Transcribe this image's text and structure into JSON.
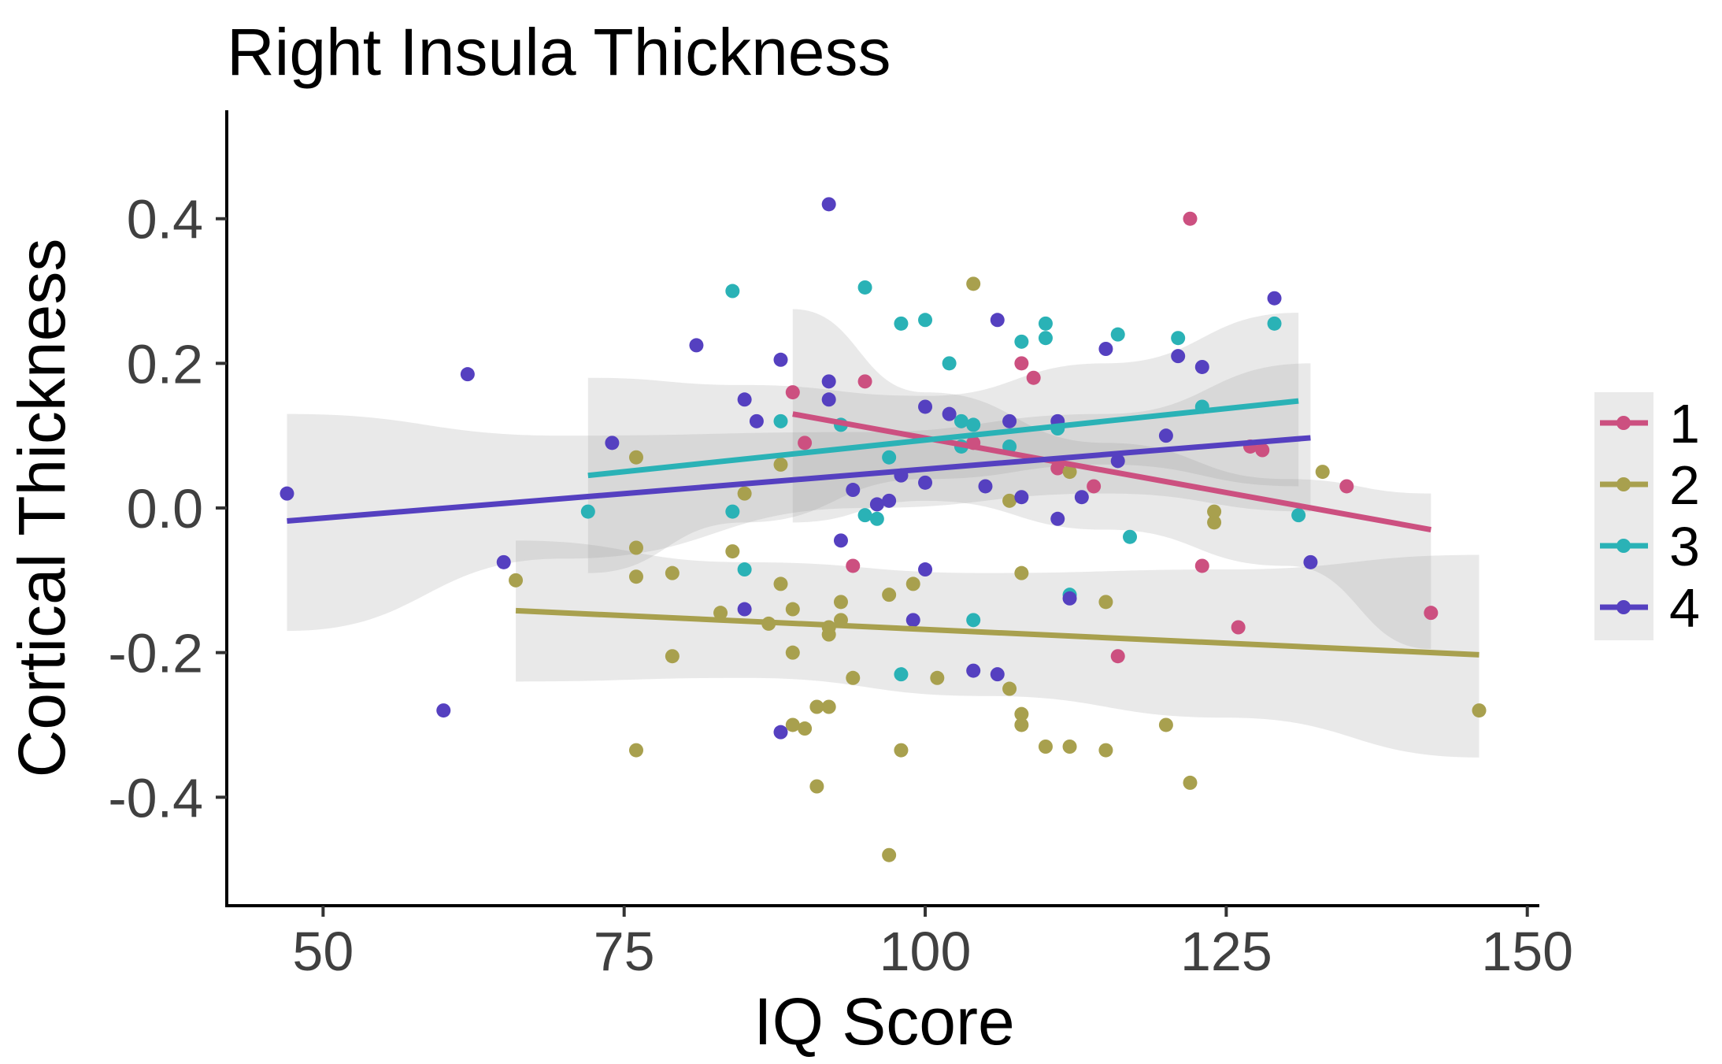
{
  "chart_data": {
    "type": "scatter",
    "title": "Right Insula Thickness",
    "xlabel": "IQ Score",
    "ylabel": "Cortical Thickness",
    "xlim": [
      42,
      151
    ],
    "ylim": [
      -0.55,
      0.55
    ],
    "x_ticks": [
      50,
      75,
      100,
      125,
      150
    ],
    "x_tick_labels": [
      "50",
      "75",
      "100",
      "125",
      "150"
    ],
    "y_ticks": [
      -0.4,
      -0.2,
      0.0,
      0.2,
      0.4
    ],
    "y_tick_labels": [
      "-0.4",
      "-0.2",
      "0.0",
      "0.2",
      "0.4"
    ],
    "grid": false,
    "legend_position": "right",
    "series": [
      {
        "name": "1",
        "color": "#CC5080",
        "points": [
          [
            89,
            0.16
          ],
          [
            90,
            0.09
          ],
          [
            94,
            -0.08
          ],
          [
            95,
            0.175
          ],
          [
            104,
            0.09
          ],
          [
            108,
            0.2
          ],
          [
            109,
            0.18
          ],
          [
            111,
            0.055
          ],
          [
            114,
            0.03
          ],
          [
            116,
            -0.205
          ],
          [
            122,
            0.4
          ],
          [
            123,
            -0.08
          ],
          [
            126,
            -0.165
          ],
          [
            127,
            0.085
          ],
          [
            128,
            0.08
          ],
          [
            135,
            0.03
          ],
          [
            142,
            -0.145
          ]
        ],
        "trend": {
          "x": [
            89,
            142
          ],
          "y": [
            0.13,
            -0.03
          ]
        },
        "band": {
          "x": [
            89,
            100,
            115,
            130,
            142
          ],
          "upper": [
            0.275,
            0.16,
            0.09,
            0.04,
            0.02
          ],
          "lower": [
            -0.02,
            0.01,
            -0.03,
            -0.08,
            -0.195
          ]
        }
      },
      {
        "name": "2",
        "color": "#A8A04E",
        "points": [
          [
            66,
            -0.1
          ],
          [
            76,
            0.07
          ],
          [
            76,
            -0.055
          ],
          [
            76,
            -0.095
          ],
          [
            76,
            -0.335
          ],
          [
            79,
            -0.09
          ],
          [
            79,
            -0.205
          ],
          [
            83,
            -0.145
          ],
          [
            84,
            -0.06
          ],
          [
            85,
            0.02
          ],
          [
            87,
            -0.16
          ],
          [
            88,
            0.06
          ],
          [
            88,
            -0.105
          ],
          [
            89,
            -0.14
          ],
          [
            89,
            -0.2
          ],
          [
            89,
            -0.3
          ],
          [
            90,
            -0.305
          ],
          [
            91,
            -0.275
          ],
          [
            91,
            -0.385
          ],
          [
            92,
            -0.165
          ],
          [
            92,
            -0.175
          ],
          [
            92,
            -0.275
          ],
          [
            93,
            -0.13
          ],
          [
            93,
            -0.155
          ],
          [
            94,
            -0.235
          ],
          [
            97,
            -0.12
          ],
          [
            97,
            -0.48
          ],
          [
            98,
            -0.335
          ],
          [
            99,
            -0.105
          ],
          [
            101,
            -0.235
          ],
          [
            104,
            0.31
          ],
          [
            107,
            0.01
          ],
          [
            107,
            -0.25
          ],
          [
            108,
            -0.09
          ],
          [
            108,
            -0.285
          ],
          [
            108,
            -0.3
          ],
          [
            110,
            -0.33
          ],
          [
            112,
            0.05
          ],
          [
            112,
            -0.33
          ],
          [
            115,
            -0.13
          ],
          [
            115,
            -0.335
          ],
          [
            120,
            -0.3
          ],
          [
            122,
            -0.38
          ],
          [
            124,
            -0.005
          ],
          [
            124,
            -0.02
          ],
          [
            133,
            0.05
          ],
          [
            146,
            -0.28
          ]
        ],
        "trend": {
          "x": [
            66,
            146
          ],
          "y": [
            -0.142,
            -0.203
          ]
        },
        "band": {
          "x": [
            66,
            85,
            105,
            125,
            146
          ],
          "upper": [
            -0.045,
            -0.075,
            -0.09,
            -0.085,
            -0.065
          ],
          "lower": [
            -0.24,
            -0.235,
            -0.26,
            -0.29,
            -0.345
          ]
        }
      },
      {
        "name": "3",
        "color": "#2AB2B6",
        "points": [
          [
            72,
            -0.005
          ],
          [
            84,
            0.3
          ],
          [
            84,
            -0.005
          ],
          [
            85,
            -0.085
          ],
          [
            88,
            0.12
          ],
          [
            93,
            0.115
          ],
          [
            95,
            0.305
          ],
          [
            95,
            -0.01
          ],
          [
            96,
            -0.015
          ],
          [
            97,
            0.07
          ],
          [
            98,
            0.255
          ],
          [
            98,
            -0.23
          ],
          [
            100,
            0.26
          ],
          [
            102,
            0.2
          ],
          [
            103,
            0.12
          ],
          [
            103,
            0.085
          ],
          [
            104,
            0.115
          ],
          [
            104,
            -0.155
          ],
          [
            107,
            0.085
          ],
          [
            108,
            0.23
          ],
          [
            110,
            0.255
          ],
          [
            110,
            0.235
          ],
          [
            111,
            0.11
          ],
          [
            112,
            -0.12
          ],
          [
            116,
            0.24
          ],
          [
            117,
            -0.04
          ],
          [
            121,
            0.235
          ],
          [
            123,
            0.14
          ],
          [
            129,
            0.255
          ],
          [
            131,
            -0.01
          ]
        ],
        "trend": {
          "x": [
            72,
            131
          ],
          "y": [
            0.045,
            0.148
          ]
        },
        "band": {
          "x": [
            72,
            85,
            100,
            115,
            131
          ],
          "upper": [
            0.18,
            0.17,
            0.155,
            0.2,
            0.27
          ],
          "lower": [
            -0.09,
            -0.02,
            0.04,
            0.06,
            0.03
          ]
        }
      },
      {
        "name": "4",
        "color": "#5540C0",
        "points": [
          [
            47,
            0.02
          ],
          [
            60,
            -0.28
          ],
          [
            62,
            0.185
          ],
          [
            65,
            -0.075
          ],
          [
            74,
            0.09
          ],
          [
            81,
            0.225
          ],
          [
            85,
            0.15
          ],
          [
            85,
            -0.14
          ],
          [
            86,
            0.12
          ],
          [
            88,
            0.205
          ],
          [
            88,
            -0.31
          ],
          [
            92,
            0.42
          ],
          [
            92,
            0.175
          ],
          [
            92,
            0.15
          ],
          [
            93,
            -0.045
          ],
          [
            94,
            0.025
          ],
          [
            96,
            0.005
          ],
          [
            97,
            0.01
          ],
          [
            98,
            0.045
          ],
          [
            99,
            -0.155
          ],
          [
            100,
            0.14
          ],
          [
            100,
            0.035
          ],
          [
            100,
            -0.085
          ],
          [
            102,
            0.13
          ],
          [
            104,
            -0.225
          ],
          [
            105,
            0.03
          ],
          [
            106,
            0.26
          ],
          [
            106,
            -0.23
          ],
          [
            107,
            0.12
          ],
          [
            108,
            0.015
          ],
          [
            111,
            0.12
          ],
          [
            111,
            -0.015
          ],
          [
            112,
            -0.125
          ],
          [
            113,
            0.015
          ],
          [
            115,
            0.22
          ],
          [
            116,
            0.065
          ],
          [
            120,
            0.1
          ],
          [
            121,
            0.21
          ],
          [
            123,
            0.195
          ],
          [
            129,
            0.29
          ],
          [
            132,
            -0.075
          ]
        ],
        "trend": {
          "x": [
            47,
            132
          ],
          "y": [
            -0.018,
            0.097
          ]
        },
        "band": {
          "x": [
            47,
            70,
            95,
            115,
            132
          ],
          "upper": [
            0.13,
            0.1,
            0.105,
            0.13,
            0.2
          ],
          "lower": [
            -0.17,
            -0.07,
            0.0,
            0.02,
            -0.005
          ]
        }
      }
    ]
  }
}
